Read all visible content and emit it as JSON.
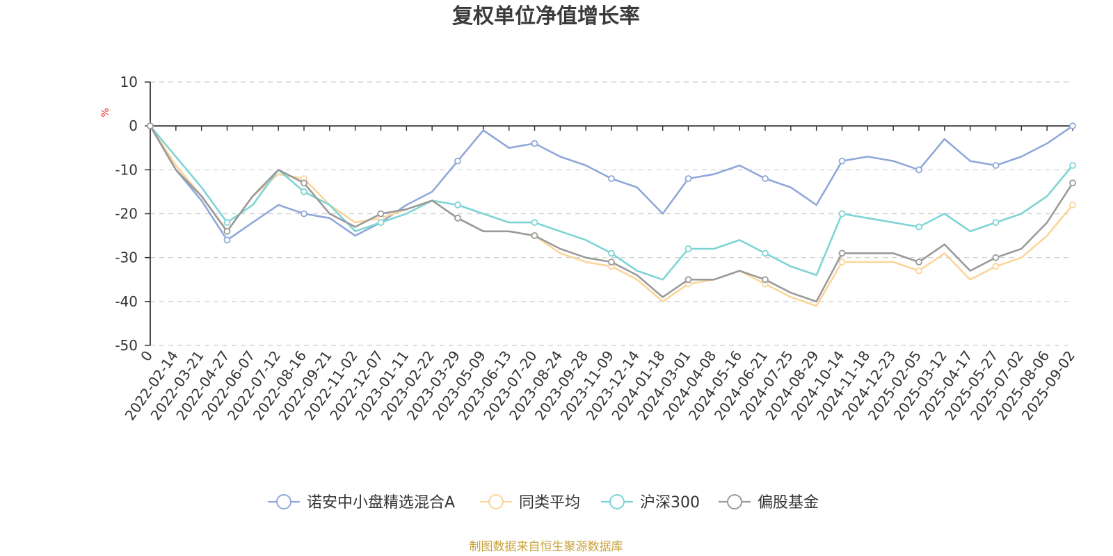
{
  "chart_data": {
    "type": "line",
    "title": "复权单位净值增长率",
    "y_unit": "%",
    "ylim": [
      -50,
      10
    ],
    "y_ticks": [
      10,
      0,
      -10,
      -20,
      -30,
      -40,
      -50
    ],
    "grid": "horizontal-dashed",
    "legend_position": "bottom",
    "x_categories": [
      "0",
      "2022-02-14",
      "2022-03-21",
      "2022-04-27",
      "2022-06-07",
      "2022-07-12",
      "2022-08-16",
      "2022-09-21",
      "2022-11-02",
      "2022-12-07",
      "2023-01-11",
      "2023-02-22",
      "2023-03-29",
      "2023-05-09",
      "2023-06-13",
      "2023-07-20",
      "2023-08-24",
      "2023-09-28",
      "2023-11-09",
      "2023-12-14",
      "2024-01-18",
      "2024-03-01",
      "2024-04-08",
      "2024-05-16",
      "2024-06-21",
      "2024-07-25",
      "2024-08-29",
      "2024-10-14",
      "2024-11-18",
      "2024-12-23",
      "2025-02-05",
      "2025-03-12",
      "2025-04-17",
      "2025-05-27",
      "2025-07-02",
      "2025-08-06",
      "2025-09-02"
    ],
    "series": [
      {
        "name": "诺安中小盘精选混合A",
        "color": "#8fa8d9",
        "values": [
          0,
          -10,
          -17,
          -26,
          -22,
          -18,
          -20,
          -21,
          -25,
          -22,
          -18,
          -15,
          -8,
          -1,
          -5,
          -4,
          -7,
          -9,
          -12,
          -14,
          -20,
          -12,
          -11,
          -9,
          -12,
          -14,
          -18,
          -8,
          -7,
          -8,
          -10,
          -3,
          -8,
          -9,
          -7,
          -4,
          0
        ]
      },
      {
        "name": "同类平均",
        "color": "#fbd59a",
        "values": [
          0,
          -9,
          -16,
          -24,
          -16,
          -11,
          -12,
          -18,
          -22,
          -21,
          -19,
          -17,
          -21,
          -24,
          -24,
          -25,
          -29,
          -31,
          -32,
          -35,
          -40,
          -36,
          -35,
          -33,
          -36,
          -39,
          -41,
          -31,
          -31,
          -31,
          -33,
          -29,
          -35,
          -32,
          -30,
          -25,
          -18
        ]
      },
      {
        "name": "沪深300",
        "color": "#7ed4d4",
        "values": [
          0,
          -7,
          -14,
          -22,
          -18,
          -10,
          -15,
          -18,
          -24,
          -22,
          -20,
          -17,
          -18,
          -20,
          -22,
          -22,
          -24,
          -26,
          -29,
          -33,
          -35,
          -28,
          -28,
          -26,
          -29,
          -32,
          -34,
          -20,
          -21,
          -22,
          -23,
          -20,
          -24,
          -22,
          -20,
          -16,
          -9
        ]
      },
      {
        "name": "偏股基金",
        "color": "#9a9a9a",
        "values": [
          0,
          -10,
          -16,
          -24,
          -16,
          -10,
          -13,
          -20,
          -23,
          -20,
          -19,
          -17,
          -21,
          -24,
          -24,
          -25,
          -28,
          -30,
          -31,
          -34,
          -39,
          -35,
          -35,
          -33,
          -35,
          -38,
          -40,
          -29,
          -29,
          -29,
          -31,
          -27,
          -33,
          -30,
          -28,
          -22,
          -13
        ]
      }
    ],
    "source_note": "制图数据来自恒生聚源数据库"
  }
}
